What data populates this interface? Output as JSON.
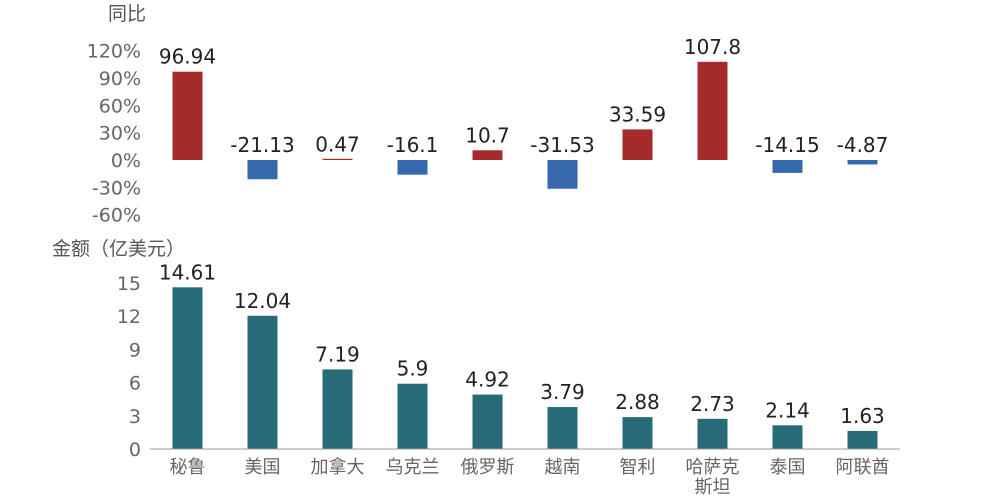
{
  "chart_data": [
    {
      "type": "bar",
      "ylabel": "同比",
      "categories": [
        "秘鲁",
        "美国",
        "加拿大",
        "乌克兰",
        "俄罗斯",
        "越南",
        "智利",
        "哈萨克斯坦",
        "泰国",
        "阿联酋"
      ],
      "values": [
        96.94,
        -21.13,
        0.47,
        -16.1,
        10.7,
        -31.53,
        33.59,
        107.8,
        -14.15,
        -4.87
      ],
      "value_labels": [
        "96.94",
        "-21.13",
        "0.47",
        "-16.1",
        "10.7",
        "-31.53",
        "33.59",
        "107.8",
        "-14.15",
        "-4.87"
      ],
      "ylim": [
        -60,
        120
      ],
      "yticks": [
        -60,
        -30,
        0,
        30,
        60,
        90,
        120
      ],
      "ytick_labels": [
        "-60%",
        "-30%",
        "0%",
        "30%",
        "60%",
        "90%",
        "120%"
      ],
      "colors": {
        "positive": "#a52a2a",
        "negative": "#3469ae"
      },
      "grid": false
    },
    {
      "type": "bar",
      "ylabel": "金额（亿美元）",
      "categories": [
        "秘鲁",
        "美国",
        "加拿大",
        "乌克兰",
        "俄罗斯",
        "越南",
        "智利",
        "哈萨克斯坦",
        "泰国",
        "阿联酋"
      ],
      "category_lines": [
        [
          "秘鲁"
        ],
        [
          "美国"
        ],
        [
          "加拿大"
        ],
        [
          "乌克兰"
        ],
        [
          "俄罗斯"
        ],
        [
          "越南"
        ],
        [
          "智利"
        ],
        [
          "哈萨克",
          "斯坦"
        ],
        [
          "泰国"
        ],
        [
          "阿联酋"
        ]
      ],
      "values": [
        14.61,
        12.04,
        7.19,
        5.9,
        4.92,
        3.79,
        2.88,
        2.73,
        2.14,
        1.63
      ],
      "value_labels": [
        "14.61",
        "12.04",
        "7.19",
        "5.9",
        "4.92",
        "3.79",
        "2.88",
        "2.73",
        "2.14",
        "1.63"
      ],
      "ylim": [
        0,
        15
      ],
      "yticks": [
        0,
        3,
        6,
        9,
        12,
        15
      ],
      "ytick_labels": [
        "0",
        "3",
        "6",
        "9",
        "12",
        "15"
      ],
      "colors": {
        "bar": "#276a78"
      },
      "grid": false
    }
  ]
}
